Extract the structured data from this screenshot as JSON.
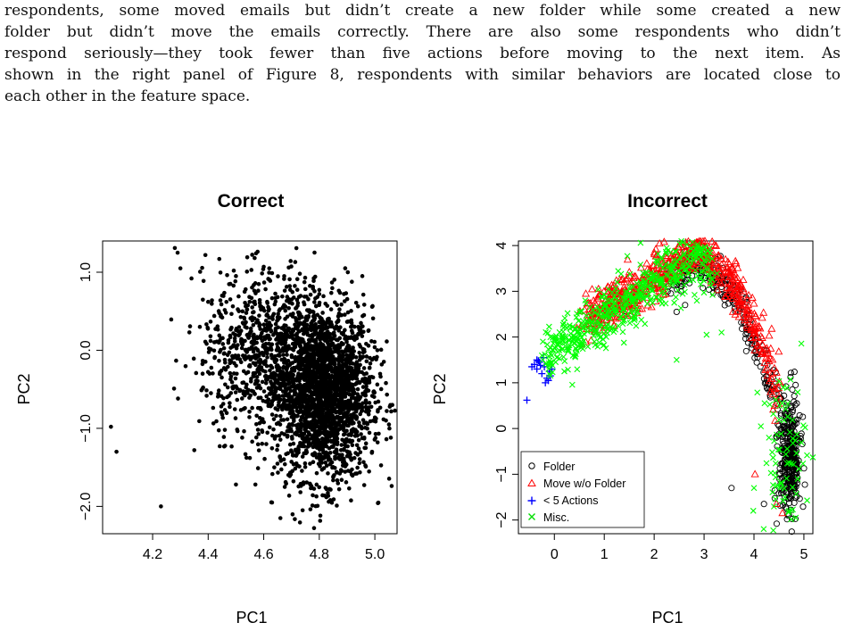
{
  "paragraph": [
    "respondents, some moved emails but didn’t create a new folder while some created a new",
    "folder but didn’t move the emails correctly.  There are also some respondents who didn’t",
    "respond seriously—they took fewer than five actions before moving to the next item.  As",
    "shown in the right panel of Figure 8, respondents with similar behaviors are located close to",
    "each other in the feature space."
  ],
  "chart_data": [
    {
      "type": "scatter",
      "title": "Correct",
      "xlabel": "PC1",
      "ylabel": "PC2",
      "xlim": [
        4.02,
        5.08
      ],
      "ylim": [
        -2.35,
        1.4
      ],
      "xticks": [
        "4.2",
        "4.4",
        "4.6",
        "4.8",
        "5.0"
      ],
      "yticks": [
        "−2.0",
        "−1.0",
        "0.0",
        "1.0"
      ],
      "series": [
        {
          "color": "#000000",
          "marker": "filled-circle",
          "points": [
            [
              4.28,
              1.31
            ],
            [
              4.29,
              1.25
            ],
            [
              4.3,
              1.05
            ],
            [
              4.34,
              0.92
            ],
            [
              4.39,
              1.22
            ],
            [
              4.44,
              1.17
            ],
            [
              4.05,
              -0.98
            ],
            [
              4.07,
              -1.3
            ],
            [
              4.23,
              -2.0
            ],
            [
              4.35,
              -1.28
            ],
            [
              4.5,
              -1.72
            ],
            [
              4.46,
              -1.02
            ],
            [
              4.41,
              -0.55
            ],
            [
              4.38,
              -0.3
            ],
            [
              4.37,
              0.3
            ],
            [
              4.4,
              0.62
            ],
            [
              4.45,
              0.7
            ],
            [
              4.48,
              0.85
            ],
            [
              4.5,
              0.95
            ],
            [
              4.6,
              1.07
            ],
            [
              4.62,
              1.05
            ],
            [
              4.69,
              1.06
            ],
            [
              4.73,
              0.98
            ],
            [
              4.8,
              0.72
            ],
            [
              4.88,
              0.45
            ],
            [
              4.95,
              0.22
            ],
            [
              4.99,
              -0.12
            ],
            [
              5.04,
              -0.42
            ],
            [
              5.04,
              -0.9
            ],
            [
              5.01,
              -1.18
            ],
            [
              4.99,
              -1.3
            ],
            [
              4.93,
              -1.58
            ],
            [
              4.84,
              -1.92
            ],
            [
              4.74,
              -2.05
            ],
            [
              4.66,
              -2.15
            ],
            [
              4.63,
              -1.95
            ],
            [
              4.57,
              -1.72
            ],
            [
              4.55,
              -1.38
            ]
          ],
          "cluster": {
            "cx": 4.82,
            "cy": -0.55,
            "sx": 0.085,
            "sy": 0.55,
            "count": 2200
          },
          "cluster_tail": {
            "cx": 4.62,
            "cy": -0.05,
            "sx": 0.12,
            "sy": 0.5,
            "count": 900
          }
        }
      ]
    },
    {
      "type": "scatter",
      "title": "Incorrect",
      "xlabel": "PC1",
      "ylabel": "PC2",
      "xlim": [
        -0.72,
        5.18
      ],
      "ylim": [
        -2.3,
        4.1
      ],
      "xticks": [
        "0",
        "1",
        "2",
        "3",
        "4",
        "5"
      ],
      "yticks": [
        "−2",
        "−1",
        "0",
        "1",
        "2",
        "3",
        "4"
      ],
      "legend": {
        "position": "bottom-left",
        "entries": [
          "Folder",
          "Move w/o Folder",
          "< 5 Actions",
          "Misc."
        ]
      },
      "series": [
        {
          "name": "Folder",
          "color": "#000000",
          "marker": "open-circle",
          "arc": {
            "from": 2.2,
            "to": 4.8,
            "count": 260
          },
          "blob": {
            "cx": 4.72,
            "cy": -0.7,
            "sx": 0.11,
            "sy": 0.7,
            "count": 320
          },
          "points": [
            [
              3.55,
              -1.3
            ],
            [
              4.2,
              -1.65
            ],
            [
              1.4,
              2.45
            ],
            [
              2.45,
              2.55
            ],
            [
              2.62,
              2.7
            ]
          ]
        },
        {
          "name": "Move w/o Folder",
          "color": "#ff0000",
          "marker": "open-triangle",
          "arc": {
            "from": 0.6,
            "to": 4.5,
            "count": 650
          },
          "points": [
            [
              4.02,
              -1.0
            ],
            [
              4.45,
              -1.65
            ],
            [
              4.57,
              -1.85
            ],
            [
              1.35,
              3.25
            ],
            [
              2.1,
              3.0
            ],
            [
              0.45,
              2.2
            ]
          ]
        },
        {
          "name": "< 5 Actions",
          "color": "#0000ff",
          "marker": "plus",
          "points": [
            [
              -0.4,
              1.4
            ],
            [
              -0.35,
              1.5
            ],
            [
              -0.3,
              1.45
            ],
            [
              -0.2,
              1.35
            ],
            [
              -0.25,
              1.2
            ],
            [
              -0.15,
              1.1
            ],
            [
              -0.1,
              1.25
            ],
            [
              -0.35,
              1.3
            ],
            [
              -0.45,
              1.35
            ],
            [
              -0.22,
              1.55
            ],
            [
              -0.18,
              1.0
            ],
            [
              -0.28,
              1.38
            ],
            [
              -0.12,
              1.05
            ],
            [
              -0.32,
              1.48
            ],
            [
              -0.05,
              1.3
            ],
            [
              -0.08,
              1.15
            ],
            [
              -0.55,
              0.62
            ]
          ]
        },
        {
          "name": "Misc.",
          "color": "#00ff00",
          "marker": "x",
          "arc": {
            "from": -0.2,
            "to": 3.2,
            "count": 520
          },
          "blob": {
            "cx": 4.6,
            "cy": -0.6,
            "sx": 0.22,
            "sy": 0.9,
            "count": 80
          },
          "points": [
            [
              2.45,
              1.5
            ],
            [
              4.0,
              -1.3
            ],
            [
              3.35,
              2.1
            ],
            [
              3.05,
              2.05
            ],
            [
              0.2,
              1.25
            ],
            [
              0.45,
              1.7
            ],
            [
              0.9,
              2.05
            ],
            [
              2.05,
              3.6
            ],
            [
              4.3,
              -0.2
            ],
            [
              4.7,
              -1.8
            ]
          ]
        }
      ]
    }
  ]
}
